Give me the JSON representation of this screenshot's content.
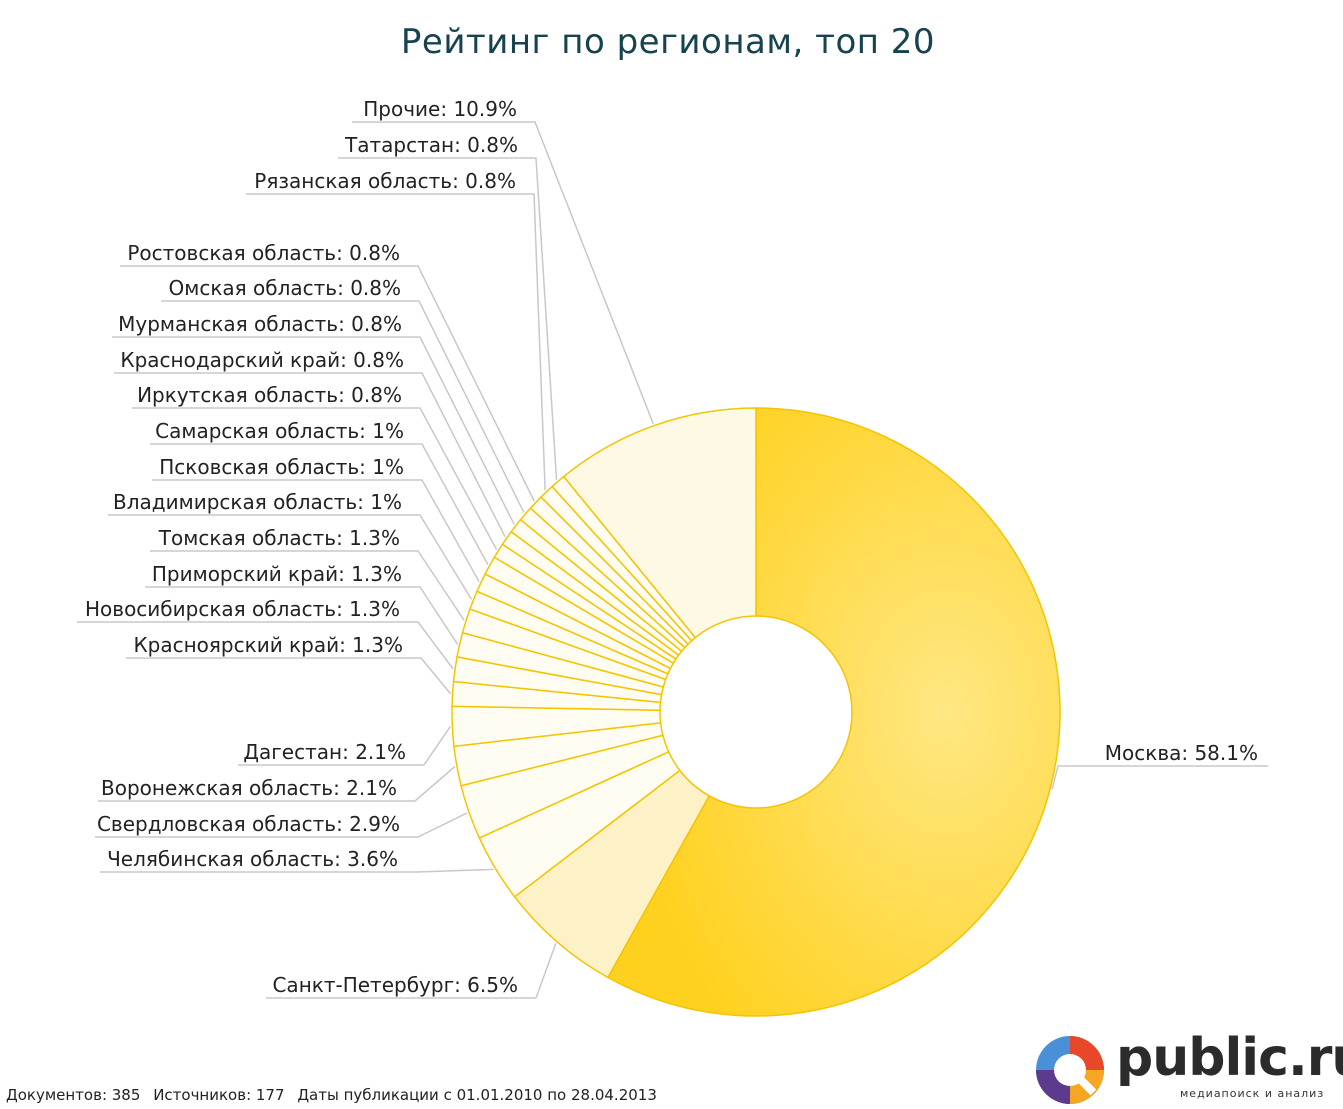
{
  "chart_data": {
    "type": "pie",
    "title": "Рейтинг по регионам, топ 20",
    "slices": [
      {
        "name": "Москва",
        "value": 58.1,
        "label": "Москва: 58.1%"
      },
      {
        "name": "Санкт-Петербург",
        "value": 6.5,
        "label": "Санкт-Петербург: 6.5%"
      },
      {
        "name": "Челябинская область",
        "value": 3.6,
        "label": "Челябинская область: 3.6%"
      },
      {
        "name": "Свердловская область",
        "value": 2.9,
        "label": "Свердловская область: 2.9%"
      },
      {
        "name": "Воронежская область",
        "value": 2.1,
        "label": "Воронежская область: 2.1%"
      },
      {
        "name": "Дагестан",
        "value": 2.1,
        "label": "Дагестан: 2.1%"
      },
      {
        "name": "Красноярский край",
        "value": 1.3,
        "label": "Красноярский край: 1.3%"
      },
      {
        "name": "Новосибирская область",
        "value": 1.3,
        "label": "Новосибирская область: 1.3%"
      },
      {
        "name": "Приморский край",
        "value": 1.3,
        "label": "Приморский край: 1.3%"
      },
      {
        "name": "Томская область",
        "value": 1.3,
        "label": "Томская область: 1.3%"
      },
      {
        "name": "Владимирская область",
        "value": 1.0,
        "label": "Владимирская область: 1%"
      },
      {
        "name": "Псковская область",
        "value": 1.0,
        "label": "Псковская область: 1%"
      },
      {
        "name": "Самарская область",
        "value": 1.0,
        "label": "Самарская область: 1%"
      },
      {
        "name": "Иркутская область",
        "value": 0.8,
        "label": "Иркутская область: 0.8%"
      },
      {
        "name": "Краснодарский край",
        "value": 0.8,
        "label": "Краснодарский край: 0.8%"
      },
      {
        "name": "Мурманская область",
        "value": 0.8,
        "label": "Мурманская область: 0.8%"
      },
      {
        "name": "Омская область",
        "value": 0.8,
        "label": "Омская область: 0.8%"
      },
      {
        "name": "Ростовская область",
        "value": 0.8,
        "label": "Ростовская область: 0.8%"
      },
      {
        "name": "Рязанская область",
        "value": 0.8,
        "label": "Рязанская область: 0.8%"
      },
      {
        "name": "Татарстан",
        "value": 0.8,
        "label": "Татарстан: 0.8%"
      },
      {
        "name": "Прочие",
        "value": 10.9,
        "label": "Прочие: 10.9%"
      }
    ],
    "colors": {
      "main": "#ffd52e",
      "main_light": "#ffe375",
      "second": "#fdf1c7",
      "others": "#fef9e5",
      "small": "#fffdf2",
      "stroke": "#f5c400",
      "leader": "#c8c8c8"
    }
  },
  "footer": {
    "documents": "Документов: 385",
    "sources": "Источников: 177",
    "dates": "Даты публикации с 01.01.2010 по 28.04.2013"
  },
  "logo": {
    "text": "public.ru",
    "tagline": "медиапоиск и анализ"
  }
}
